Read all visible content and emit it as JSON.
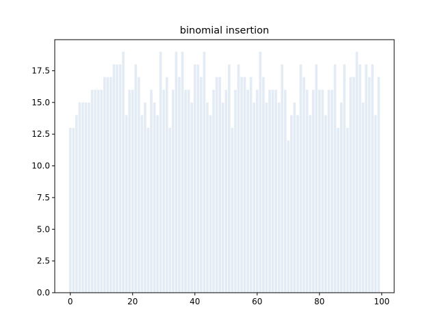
{
  "chart_data": {
    "type": "bar",
    "title": "binomial insertion",
    "xlabel": "",
    "ylabel": "",
    "x": [
      0,
      1,
      2,
      3,
      4,
      5,
      6,
      7,
      8,
      9,
      10,
      11,
      12,
      13,
      14,
      15,
      16,
      17,
      18,
      19,
      20,
      21,
      22,
      23,
      24,
      25,
      26,
      27,
      28,
      29,
      30,
      31,
      32,
      33,
      34,
      35,
      36,
      37,
      38,
      39,
      40,
      41,
      42,
      43,
      44,
      45,
      46,
      47,
      48,
      49,
      50,
      51,
      52,
      53,
      54,
      55,
      56,
      57,
      58,
      59,
      60,
      61,
      62,
      63,
      64,
      65,
      66,
      67,
      68,
      69,
      70,
      71,
      72,
      73,
      74,
      75,
      76,
      77,
      78,
      79,
      80,
      81,
      82,
      83,
      84,
      85,
      86,
      87,
      88,
      89,
      90,
      91,
      92,
      93,
      94,
      95,
      96,
      97,
      98,
      99
    ],
    "values": [
      13,
      13,
      14,
      15,
      15,
      15,
      15,
      16,
      16,
      16,
      16,
      17,
      17,
      17,
      18,
      18,
      18,
      19,
      14,
      16,
      16,
      18,
      17,
      14,
      15,
      13,
      16,
      15,
      14,
      19,
      16,
      17,
      13,
      16,
      19,
      17,
      19,
      16,
      16,
      15,
      18,
      18,
      17,
      19,
      15,
      14,
      16,
      17,
      17,
      15,
      16,
      18,
      13,
      16,
      18,
      17,
      17,
      16,
      17,
      15,
      16,
      19,
      17,
      15,
      16,
      16,
      16,
      15,
      18,
      16,
      12,
      14,
      15,
      14,
      18,
      17,
      16,
      14,
      16,
      18,
      16,
      16,
      14,
      16,
      16,
      18,
      13,
      15,
      18,
      13,
      17,
      17,
      19,
      18,
      15,
      18,
      17,
      18,
      14,
      17
    ],
    "xlim": [
      -5,
      104
    ],
    "ylim": [
      0,
      19.95
    ],
    "xticks": [
      0,
      20,
      40,
      60,
      80,
      100
    ],
    "xtick_labels": [
      "0",
      "20",
      "40",
      "60",
      "80",
      "100"
    ],
    "yticks": [
      0,
      2.5,
      5,
      7.5,
      10,
      12.5,
      15,
      17.5
    ],
    "ytick_labels": [
      "0.0",
      "2.5",
      "5.0",
      "7.5",
      "10.0",
      "12.5",
      "15.0",
      "17.5"
    ],
    "bar_color": "#e3ecf5",
    "grid": false,
    "legend": "none"
  }
}
